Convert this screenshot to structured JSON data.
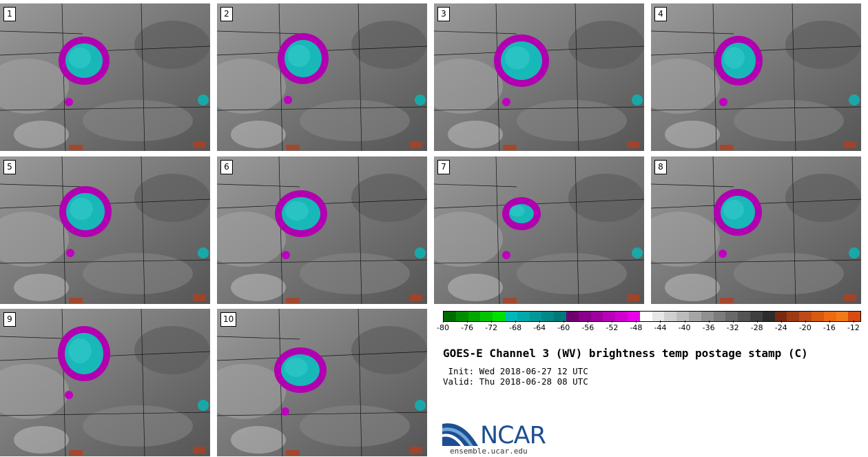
{
  "panels": [
    {
      "label": "1"
    },
    {
      "label": "2"
    },
    {
      "label": "3"
    },
    {
      "label": "4"
    },
    {
      "label": "5"
    },
    {
      "label": "6"
    },
    {
      "label": "7"
    },
    {
      "label": "8"
    },
    {
      "label": "9"
    },
    {
      "label": "10"
    }
  ],
  "colorbar": {
    "colors": [
      "#006b00",
      "#008d00",
      "#00a800",
      "#00c400",
      "#00e000",
      "#00b8b8",
      "#00a8a8",
      "#009898",
      "#008888",
      "#007878",
      "#6e006e",
      "#8a008a",
      "#a000a0",
      "#b800b8",
      "#d000d0",
      "#e800e8",
      "#ffffff",
      "#e6e6e6",
      "#d0d0d0",
      "#bcbcbc",
      "#a6a6a6",
      "#909090",
      "#7c7c7c",
      "#686868",
      "#545454",
      "#404040",
      "#2c2c2c",
      "#7a2a10",
      "#9c3a14",
      "#bd4a18",
      "#d65a10",
      "#ee6a10",
      "#f07a18",
      "#d84a10"
    ],
    "tick_labels": [
      "-80",
      "-76",
      "-72",
      "-68",
      "-64",
      "-60",
      "-56",
      "-52",
      "-48",
      "-44",
      "-40",
      "-36",
      "-32",
      "-28",
      "-24",
      "-20",
      "-16",
      "-12"
    ]
  },
  "title": "GOES-E Channel 3 (WV) brightness temp postage stamp (C)",
  "init": " Init: Wed 2018-06-27 12 UTC",
  "valid": "Valid: Thu 2018-06-28 08 UTC",
  "logo": {
    "text": "NCAR",
    "url_text": "ensemble.ucar.edu"
  }
}
